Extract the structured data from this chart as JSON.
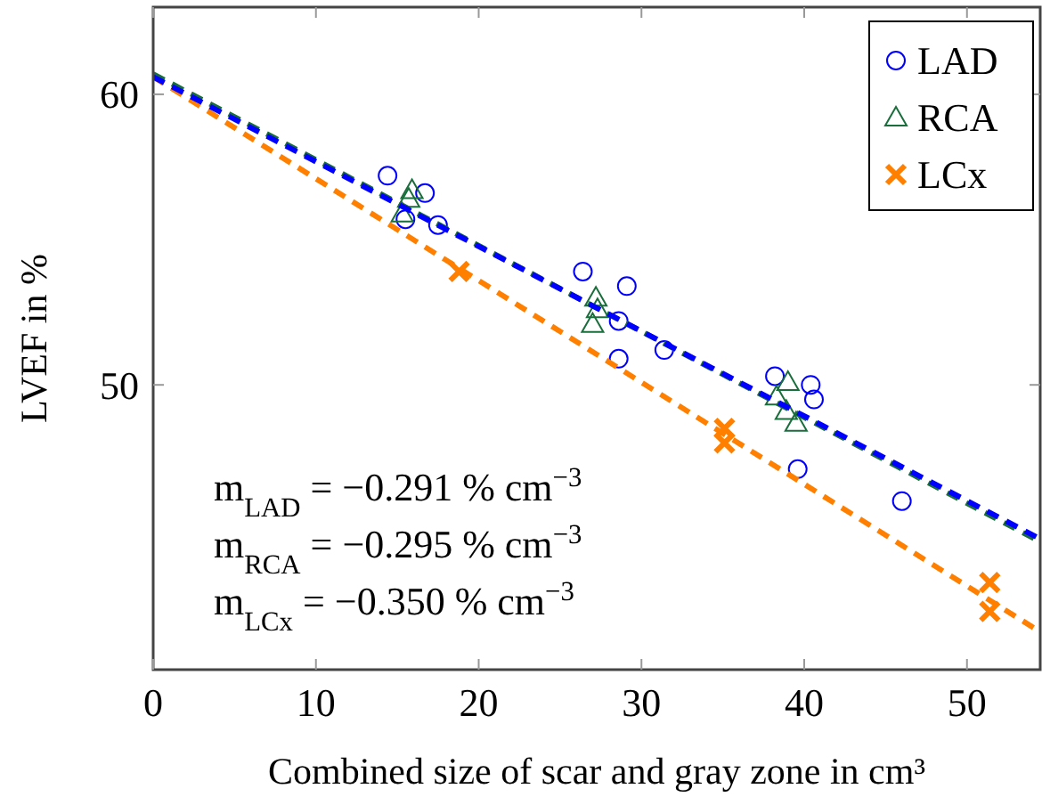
{
  "chart_data": {
    "type": "scatter",
    "xlabel": "Combined size of scar and gray zone in cm³",
    "ylabel": "LVEF in %",
    "xlim": [
      0,
      54.5
    ],
    "ylim": [
      40.2,
      63
    ],
    "xticks": [
      0,
      10,
      20,
      30,
      40,
      50
    ],
    "yticks": [
      50,
      60
    ],
    "grid": false,
    "legend": "top right",
    "series": [
      {
        "name": "LAD",
        "color": "#0000ff",
        "marker": "circle",
        "x": [
          14.4,
          16.7,
          15.5,
          17.5,
          26.4,
          29.1,
          28.6,
          28.6,
          31.4,
          38.2,
          40.4,
          40.6,
          39.6,
          46.0
        ],
        "values": [
          57.2,
          56.6,
          55.7,
          55.5,
          53.9,
          53.4,
          52.2,
          50.9,
          51.2,
          50.3,
          50.0,
          49.5,
          47.1,
          46.0
        ]
      },
      {
        "name": "RCA",
        "color": "#1a6e3c",
        "marker": "triangle",
        "x": [
          15.9,
          15.7,
          15.3,
          27.2,
          27.3,
          27.0,
          39.0,
          38.3,
          38.9,
          39.5
        ],
        "values": [
          56.7,
          56.4,
          55.9,
          53.0,
          52.6,
          52.1,
          50.1,
          49.6,
          49.1,
          48.7
        ]
      },
      {
        "name": "LCx",
        "color": "#ff8000",
        "marker": "cross",
        "x": [
          18.8,
          35.1,
          35.1,
          51.4,
          51.4
        ],
        "values": [
          53.9,
          48.5,
          48.0,
          43.2,
          42.2
        ]
      },
      {
        "type": "line",
        "color": "#ff8000",
        "line_style": "dashed",
        "x": [
          0,
          54.5
        ],
        "values": [
          60.6,
          41.5
        ]
      },
      {
        "type": "line",
        "color": "#1a6e3c",
        "line_style": "dashed",
        "x": [
          0,
          54.5
        ],
        "values": [
          60.7,
          44.6
        ]
      },
      {
        "type": "line",
        "color": "#0000ff",
        "line_style": "dashed",
        "x": [
          0,
          54.5
        ],
        "values": [
          60.6,
          44.7
        ]
      }
    ],
    "annotations": [
      "m$_{LAD}$ = −0.291 % cm$^{−3}$",
      "m$_{RCA}$ = −0.295 % cm$^{−3}$",
      "m$_{LCx}$ = −0.350 % cm$^{−3}$"
    ]
  }
}
